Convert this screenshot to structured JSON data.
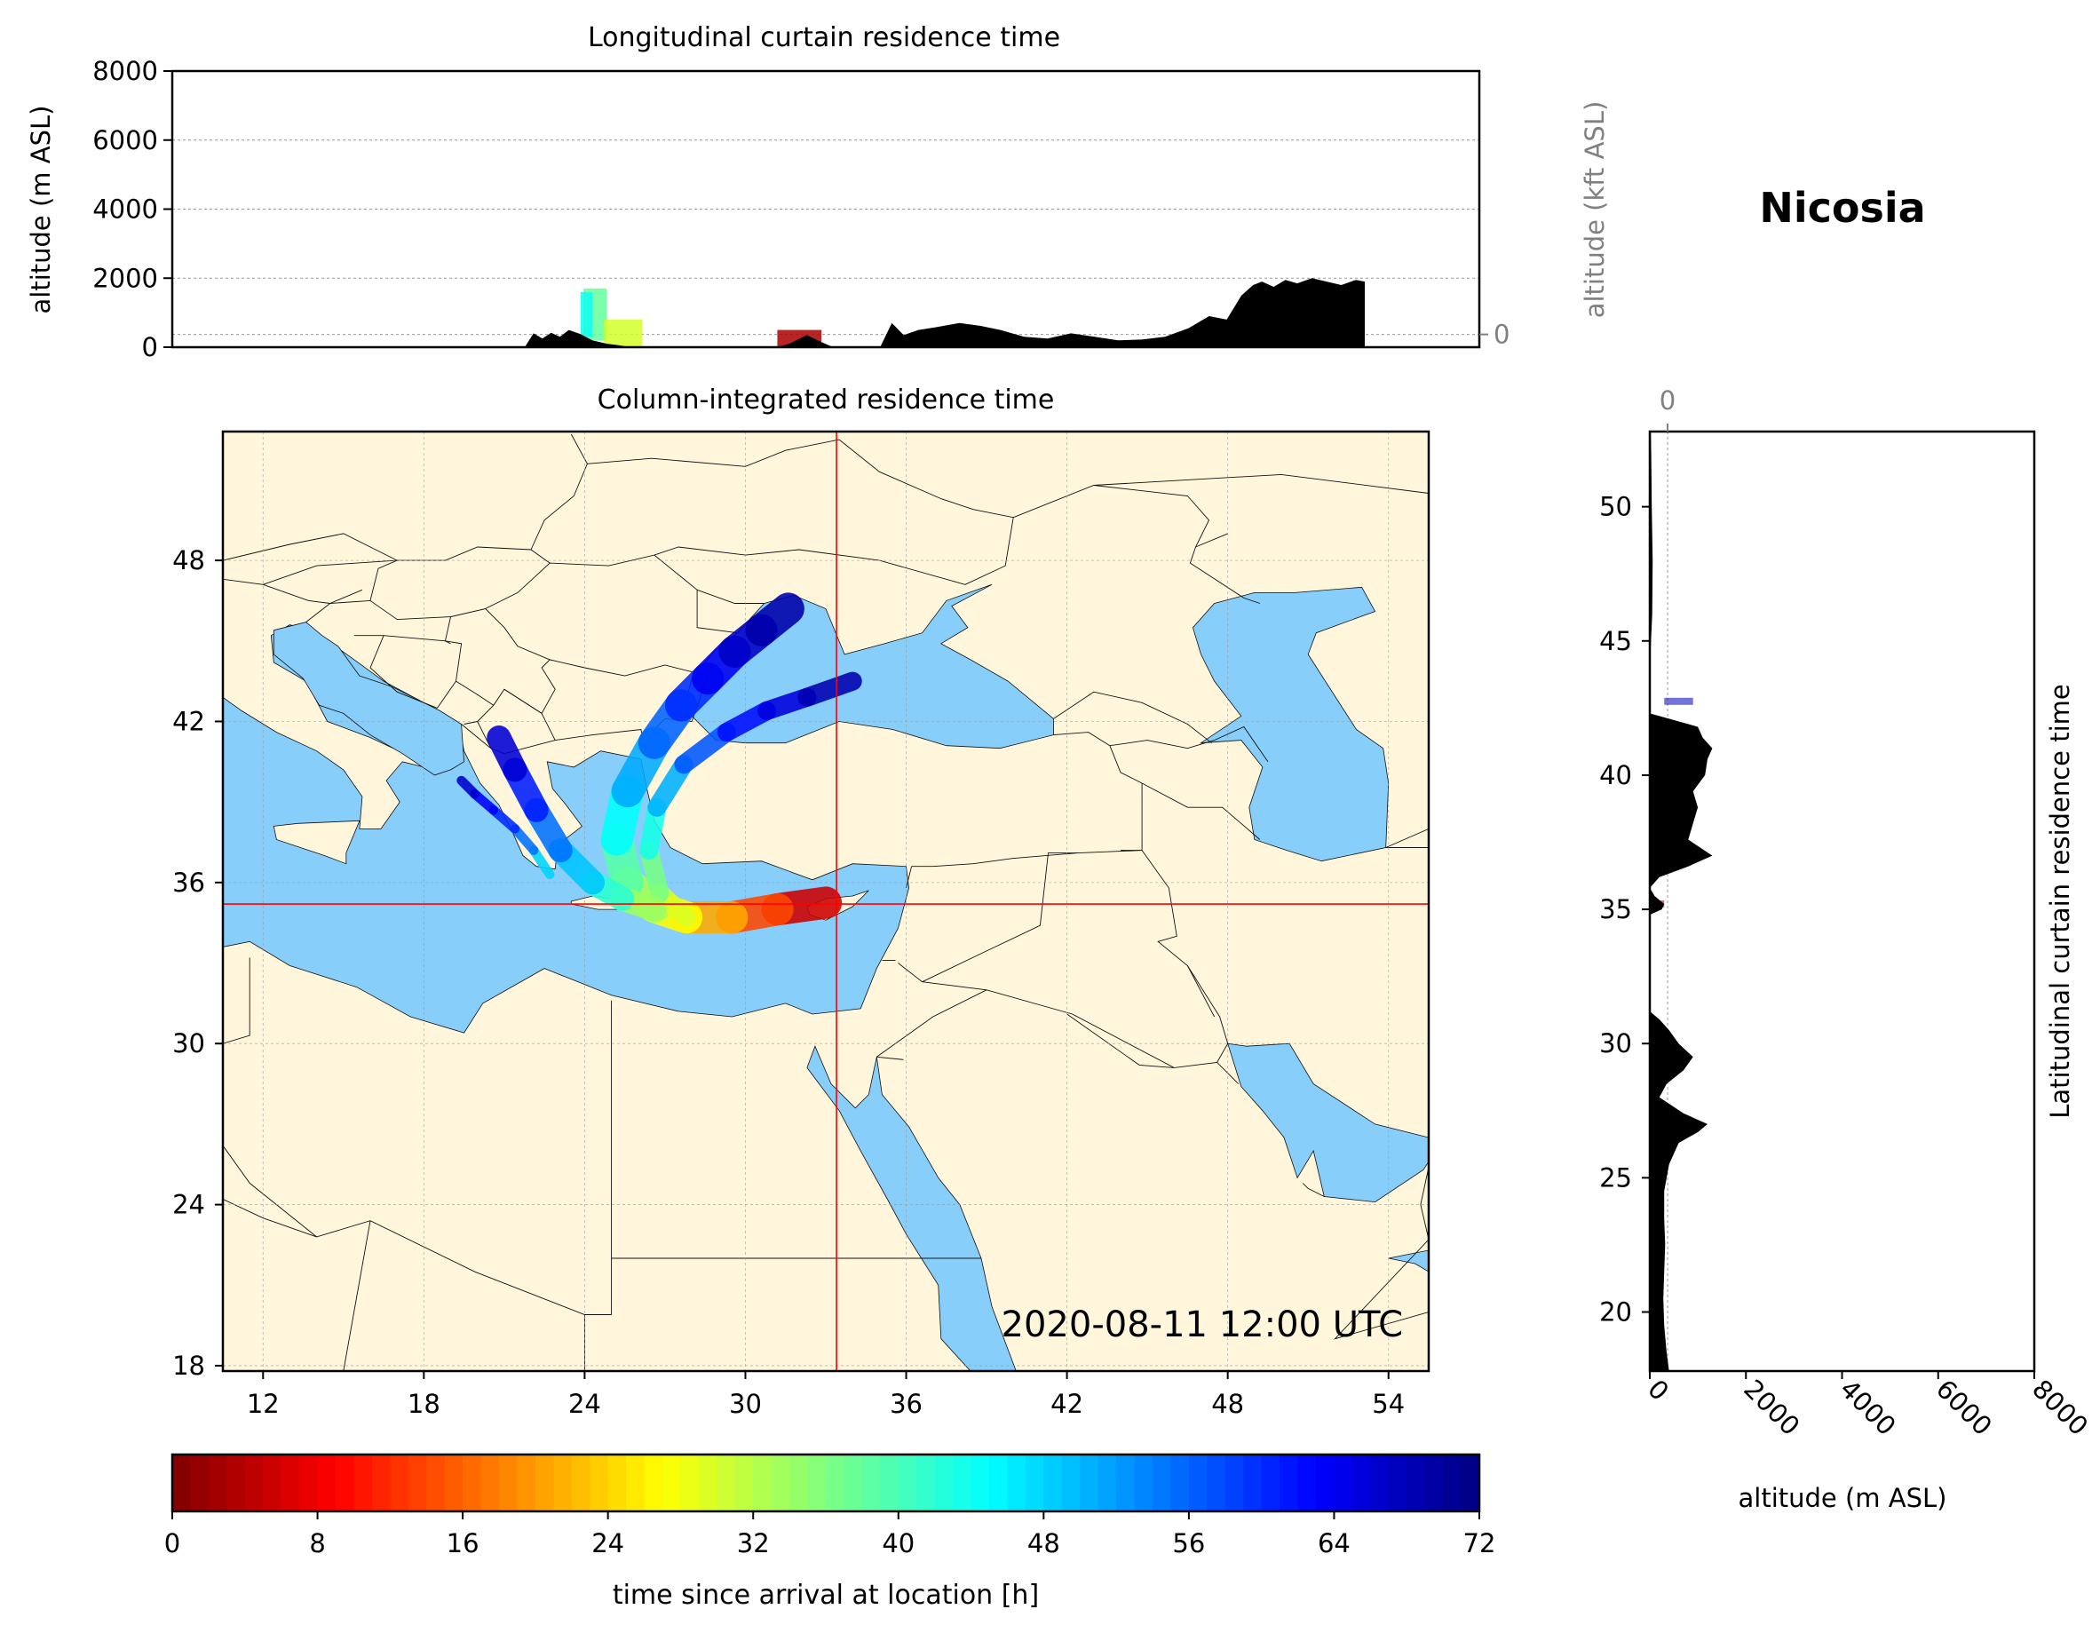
{
  "figure": {
    "station_name": "Nicosia",
    "timestamp": "2020-08-11 12:00 UTC"
  },
  "colors": {
    "land": "#fff6dc",
    "water": "#87cefa",
    "terrain": "#000000",
    "crosshair": "#ff0000",
    "grid": "#999999",
    "right_axis_text": "#808080"
  },
  "chart_data": [
    {
      "type": "area",
      "name": "longitudinal-curtain",
      "title": "Longitudinal curtain residence time",
      "ylabel": "altitude (m ASL)",
      "ylabel_right": "altitude (kft ASL)",
      "xlim": [
        11,
        55.5
      ],
      "ylim": [
        0,
        8000
      ],
      "y_ticks": [
        0,
        2000,
        4000,
        6000,
        8000
      ],
      "y_ticks_right": [
        0,
        50,
        100
      ],
      "grid": true,
      "terrain_profile": {
        "x": [
          23.0,
          23.3,
          23.6,
          23.9,
          24.2,
          24.5,
          24.9,
          25.3,
          25.8,
          26.2,
          26.6,
          27.0,
          31.6,
          32.0,
          32.6,
          33.1,
          33.5,
          35.1,
          35.5,
          35.9,
          36.4,
          37.0,
          37.8,
          38.5,
          39.2,
          40.0,
          40.8,
          41.6,
          42.4,
          43.2,
          44.0,
          44.8,
          45.6,
          46.3,
          46.9,
          47.4,
          47.8,
          48.1,
          48.5,
          48.9,
          49.3,
          49.8,
          50.3,
          50.8,
          51.3,
          51.6
        ],
        "altitude_m": [
          0,
          400,
          250,
          420,
          300,
          500,
          380,
          200,
          100,
          60,
          0,
          0,
          0,
          100,
          350,
          150,
          0,
          0,
          700,
          350,
          500,
          580,
          700,
          620,
          500,
          300,
          250,
          400,
          300,
          200,
          220,
          300,
          550,
          900,
          800,
          1500,
          1800,
          1900,
          1750,
          1950,
          1850,
          2000,
          1900,
          1800,
          1950,
          1900
        ]
      },
      "plume": [
        {
          "x_range": [
            25.0,
            25.8
          ],
          "alt_range_m": [
            200,
            1700
          ],
          "hours": 38
        },
        {
          "x_range": [
            24.9,
            25.3
          ],
          "alt_range_m": [
            300,
            1600
          ],
          "hours": 44
        },
        {
          "x_range": [
            25.7,
            27.0
          ],
          "alt_range_m": [
            0,
            800
          ],
          "hours": 30
        },
        {
          "x_range": [
            31.6,
            33.1
          ],
          "alt_range_m": [
            0,
            500
          ],
          "hours": 3
        }
      ]
    },
    {
      "type": "heatmap",
      "name": "column-integrated",
      "title": "Column-integrated residence time",
      "xlim": [
        10.5,
        55.5
      ],
      "ylim": [
        17.8,
        52.8
      ],
      "x_ticks": [
        12,
        18,
        24,
        30,
        36,
        42,
        48,
        54
      ],
      "y_ticks": [
        18,
        24,
        30,
        36,
        42,
        48
      ],
      "grid": true,
      "crosshair": {
        "lon": 33.4,
        "lat": 35.2
      },
      "plume_tracks": [
        {
          "lon": [
            33.0,
            31.2,
            29.5,
            27.8,
            26.6,
            25.6,
            25.2,
            25.6,
            26.6,
            27.6,
            28.6,
            29.6,
            30.6,
            31.6
          ],
          "lat": [
            35.25,
            35.0,
            34.7,
            34.7,
            35.1,
            36.0,
            37.6,
            39.4,
            41.2,
            42.6,
            43.6,
            44.6,
            45.4,
            46.2
          ],
          "hours": [
            1,
            10,
            18,
            24,
            30,
            36,
            42,
            48,
            54,
            58,
            62,
            66,
            68,
            70
          ],
          "width": 1.2
        },
        {
          "lon": [
            27.8,
            26.8,
            26.4,
            26.7,
            27.7,
            29.3,
            30.8,
            32.3,
            34.0
          ],
          "lat": [
            34.7,
            35.6,
            37.2,
            38.8,
            40.4,
            41.6,
            42.4,
            42.9,
            43.5
          ],
          "hours": [
            26,
            33,
            40,
            47,
            54,
            60,
            64,
            67,
            70
          ],
          "width": 0.7
        },
        {
          "lon": [
            26.6,
            25.4,
            24.3,
            23.1,
            22.2,
            21.4,
            20.8
          ],
          "lat": [
            35.0,
            35.4,
            36.0,
            37.2,
            38.7,
            40.2,
            41.4
          ],
          "hours": [
            30,
            38,
            46,
            52,
            58,
            64,
            68
          ],
          "width": 0.9
        },
        {
          "lon": [
            22.7,
            22.1,
            21.4,
            20.6,
            19.9,
            19.4
          ],
          "lat": [
            36.3,
            37.2,
            38.0,
            38.7,
            39.3,
            39.8
          ],
          "hours": [
            44,
            52,
            58,
            62,
            65,
            68
          ],
          "width": 0.35
        }
      ]
    },
    {
      "type": "area",
      "name": "latitudinal-curtain",
      "title": "Latitudinal curtain residence time",
      "xlabel": "altitude (m ASL)",
      "xlabel_top": "",
      "xlim": [
        0,
        8000
      ],
      "ylim": [
        17.8,
        52.8
      ],
      "x_ticks": [
        0,
        2000,
        4000,
        6000,
        8000
      ],
      "x_ticks_top": [
        0,
        50,
        100
      ],
      "y_ticks": [
        20,
        25,
        30,
        35,
        40,
        45,
        50
      ],
      "grid": true,
      "terrain_profile": {
        "lat": [
          17.8,
          18.5,
          19.5,
          20.5,
          21.5,
          22.5,
          23.5,
          24.5,
          25.5,
          26.3,
          26.7,
          27.0,
          27.4,
          28.0,
          28.5,
          29.0,
          29.5,
          30.0,
          30.5,
          30.9,
          31.2,
          34.8,
          35.0,
          35.2,
          35.5,
          35.8,
          36.2,
          36.6,
          37.0,
          37.6,
          38.2,
          38.8,
          39.4,
          40.0,
          40.6,
          41.0,
          41.4,
          41.8,
          42.1,
          42.3,
          44.0,
          46.0,
          48.0,
          50.0,
          52.0,
          52.8
        ],
        "altitude_m": [
          400,
          350,
          300,
          280,
          300,
          320,
          300,
          300,
          400,
          600,
          1000,
          1200,
          700,
          200,
          350,
          700,
          900,
          600,
          400,
          200,
          0,
          0,
          250,
          300,
          100,
          0,
          200,
          800,
          1300,
          800,
          900,
          1000,
          900,
          1150,
          1200,
          1300,
          1100,
          1000,
          400,
          0,
          0,
          50,
          60,
          40,
          30,
          20
        ]
      },
      "plume": [
        {
          "lat": 42.75,
          "alt_range_m": [
            300,
            900
          ],
          "hours": 68
        },
        {
          "lat": 35.2,
          "alt_range_m": [
            0,
            300
          ],
          "hours": 2
        }
      ]
    },
    {
      "type": "colorbar",
      "name": "time-colorbar",
      "xlabel": "time since arrival at location [h]",
      "range": [
        0,
        72
      ],
      "ticks": [
        0,
        8,
        16,
        24,
        32,
        40,
        48,
        56,
        64,
        72
      ],
      "colormap": "jet_r",
      "levels": 72
    }
  ]
}
